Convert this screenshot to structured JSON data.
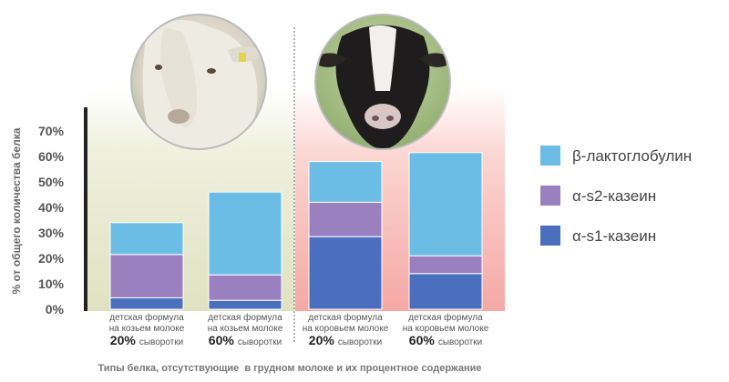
{
  "chart_data": {
    "type": "bar",
    "stacked": true,
    "categories": [
      {
        "line1": "детская формула",
        "line2": "на козьем молоке",
        "pct": "20%",
        "sub": "сыворотки"
      },
      {
        "line1": "детская формула",
        "line2": "на козьем молоке",
        "pct": "60%",
        "sub": "сыворотки"
      },
      {
        "line1": "детская формула",
        "line2": "на коровьем молоке",
        "pct": "20%",
        "sub": "сыворотки"
      },
      {
        "line1": "детская формула",
        "line2": "на коровьем молоке",
        "pct": "60%",
        "sub": "сыворотки"
      }
    ],
    "series": [
      {
        "name": "α-s1-казеин",
        "color": "#4a6fbf",
        "values": [
          4.5,
          3.5,
          28.5,
          14
        ]
      },
      {
        "name": "α-s2-казеин",
        "color": "#9b80c0",
        "values": [
          17,
          10,
          13.5,
          7
        ]
      },
      {
        "name": "β-лактоглобулин",
        "color": "#6bbde6",
        "values": [
          12.5,
          32.5,
          16,
          40.5
        ]
      }
    ],
    "legend_order": [
      "β-лактоглобулин",
      "α-s2-казеин",
      "α-s1-казеин"
    ],
    "legend_position": "right",
    "ylabel": "% от общего количества белка",
    "yticks": [
      "0%",
      "10%",
      "20%",
      "30%",
      "40%",
      "50%",
      "60%",
      "70%"
    ],
    "ylim": [
      0,
      70
    ],
    "caption": "Типы белка, отсутствующие  в грудном молоке и их процентное содержание",
    "background_colors": {
      "goat": "#e2e4c8",
      "cow": "#f6b8b4"
    }
  },
  "images": {
    "goat": "goat-photo",
    "cow": "cow-photo"
  }
}
